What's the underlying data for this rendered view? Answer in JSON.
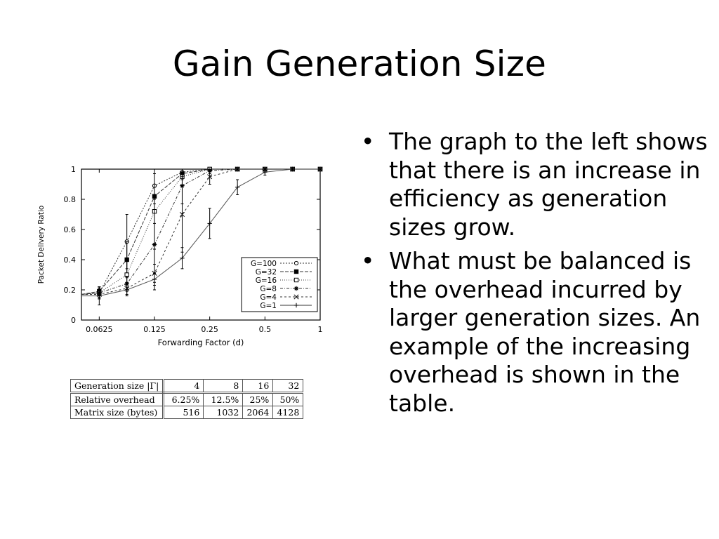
{
  "slide": {
    "title": "Gain Generation Size",
    "bullets": [
      "The graph to the left shows that there is an increase in efficiency as generation sizes grow.",
      "What must be balanced is the overhead incurred by larger generation sizes. An example of the increasing overhead is shown in the table."
    ],
    "bullet_glyph": "•"
  },
  "chart_data": {
    "type": "line",
    "xlabel": "Forwarding Factor (d)",
    "ylabel": "Packet Delivery Ratio",
    "x_scale": "log2",
    "xlim": [
      0.05,
      1
    ],
    "ylim": [
      0,
      1
    ],
    "x_tick_labels": [
      "0.0625",
      "0.125",
      "0.25",
      "0.5",
      "1"
    ],
    "x_ticks": [
      0.0625,
      0.125,
      0.25,
      0.5,
      1
    ],
    "y_ticks": [
      0,
      0.2,
      0.4,
      0.6,
      0.8,
      1
    ],
    "y_tick_labels": [
      "0",
      "0.2",
      "0.4",
      "0.6",
      "0.8",
      "1"
    ],
    "legend_position": "lower-right",
    "grid": false,
    "series": [
      {
        "name": "G=100",
        "marker": "open-circle",
        "dash": "2,2",
        "x": [
          0.05,
          0.0625,
          0.0884,
          0.125,
          0.177,
          0.25,
          0.354,
          0.5,
          0.707,
          1
        ],
        "y": [
          0.17,
          0.18,
          0.52,
          0.89,
          0.98,
          1.0,
          1.0,
          1.0,
          1.0,
          1.0
        ],
        "err": [
          0,
          0.03,
          0.18,
          0.12,
          0.04,
          0.01,
          0,
          0,
          0,
          0
        ]
      },
      {
        "name": "G=32",
        "marker": "filled-square",
        "dash": "5,2",
        "x": [
          0.05,
          0.0625,
          0.0884,
          0.125,
          0.177,
          0.25,
          0.354,
          0.5,
          0.707,
          1
        ],
        "y": [
          0.17,
          0.19,
          0.4,
          0.82,
          0.97,
          1.0,
          1.0,
          1.0,
          1.0,
          1.0
        ],
        "err": [
          0,
          0.03,
          0.12,
          0.18,
          0.04,
          0.01,
          0,
          0,
          0,
          0
        ]
      },
      {
        "name": "G=16",
        "marker": "open-square",
        "dash": "1,2",
        "x": [
          0.05,
          0.0625,
          0.0884,
          0.125,
          0.177,
          0.25,
          0.354,
          0.5,
          0.707,
          1
        ],
        "y": [
          0.17,
          0.18,
          0.3,
          0.72,
          0.95,
          1.0,
          1.0,
          1.0,
          1.0,
          1.0
        ],
        "err": [
          0,
          0.03,
          0.1,
          0.25,
          0.06,
          0.01,
          0,
          0,
          0,
          0
        ]
      },
      {
        "name": "G=8",
        "marker": "star",
        "dash": "4,2,1,2",
        "x": [
          0.05,
          0.0625,
          0.0884,
          0.125,
          0.177,
          0.25,
          0.354,
          0.5,
          0.707,
          1
        ],
        "y": [
          0.17,
          0.18,
          0.24,
          0.5,
          0.89,
          0.99,
          1.0,
          1.0,
          1.0,
          1.0
        ],
        "err": [
          0,
          0.04,
          0.05,
          0.3,
          0.12,
          0.02,
          0,
          0,
          0,
          0
        ]
      },
      {
        "name": "G=4",
        "marker": "x",
        "dash": "3,3",
        "x": [
          0.05,
          0.0625,
          0.0884,
          0.125,
          0.177,
          0.25,
          0.354,
          0.5,
          0.707,
          1
        ],
        "y": [
          0.17,
          0.17,
          0.21,
          0.31,
          0.7,
          0.95,
          1.0,
          1.0,
          1.0,
          1.0
        ],
        "err": [
          0,
          0.03,
          0.04,
          0.06,
          0.25,
          0.05,
          0,
          0,
          0,
          0
        ]
      },
      {
        "name": "G=1",
        "marker": "plus",
        "dash": "",
        "x": [
          0.05,
          0.0625,
          0.0884,
          0.125,
          0.177,
          0.25,
          0.354,
          0.5,
          0.707,
          1
        ],
        "y": [
          0.16,
          0.16,
          0.2,
          0.27,
          0.41,
          0.64,
          0.88,
          0.98,
          1.0,
          1.0
        ],
        "err": [
          0,
          0.06,
          0.04,
          0.04,
          0.07,
          0.1,
          0.05,
          0.02,
          0,
          0
        ]
      }
    ]
  },
  "table": {
    "header": [
      "Generation size |Γ|",
      "4",
      "8",
      "16",
      "32"
    ],
    "rows": [
      [
        "Relative overhead",
        "6.25%",
        "12.5%",
        "25%",
        "50%"
      ],
      [
        "Matrix size (bytes)",
        "516",
        "1032",
        "2064",
        "4128"
      ]
    ]
  }
}
